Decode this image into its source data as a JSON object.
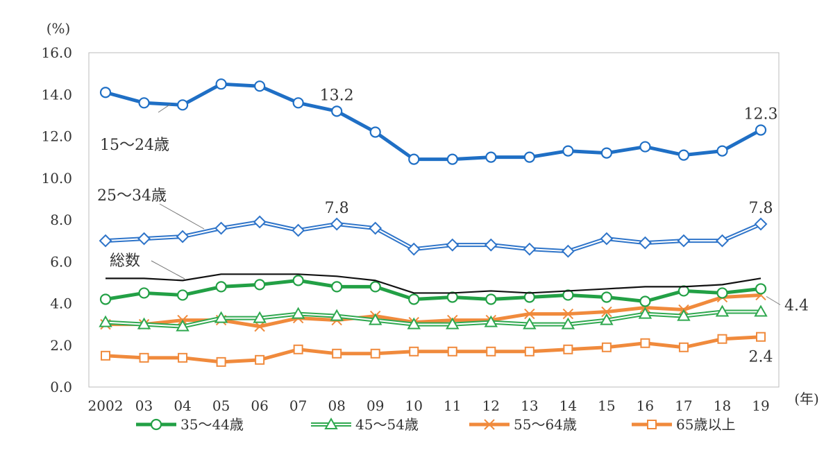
{
  "chart_data": {
    "type": "line",
    "y_unit": "(%)",
    "x_unit": "(年)",
    "categories": [
      "2002",
      "03",
      "04",
      "05",
      "06",
      "07",
      "08",
      "09",
      "10",
      "11",
      "12",
      "13",
      "14",
      "15",
      "16",
      "17",
      "18",
      "19"
    ],
    "ylim": [
      0,
      16
    ],
    "yticks": [
      "0.0",
      "2.0",
      "4.0",
      "6.0",
      "8.0",
      "10.0",
      "12.0",
      "14.0",
      "16.0"
    ],
    "grid": false,
    "legend_position": "bottom",
    "series": [
      {
        "name": "15～24歳",
        "key": "s1524",
        "color": "#1f6fc5",
        "style": "thick-circle",
        "values": [
          14.1,
          13.6,
          13.5,
          14.5,
          14.4,
          13.6,
          13.2,
          12.2,
          10.9,
          10.9,
          11.0,
          11.0,
          11.3,
          11.2,
          11.5,
          11.1,
          11.3,
          12.3
        ]
      },
      {
        "name": "25～34歳",
        "key": "s2534",
        "color": "#2e74c9",
        "style": "double-diamond",
        "values": [
          7.0,
          7.1,
          7.2,
          7.6,
          7.9,
          7.5,
          7.8,
          7.6,
          6.6,
          6.8,
          6.8,
          6.6,
          6.5,
          7.1,
          6.9,
          7.0,
          7.0,
          7.8
        ]
      },
      {
        "name": "総数",
        "key": "total",
        "color": "#111111",
        "style": "thin",
        "values": [
          5.2,
          5.2,
          5.1,
          5.4,
          5.4,
          5.4,
          5.3,
          5.1,
          4.5,
          4.5,
          4.6,
          4.5,
          4.6,
          4.7,
          4.8,
          4.8,
          4.9,
          5.2
        ]
      },
      {
        "name": "35～44歳",
        "key": "s3544",
        "color": "#22a045",
        "style": "thick-circle",
        "values": [
          4.2,
          4.5,
          4.4,
          4.8,
          4.9,
          5.1,
          4.8,
          4.8,
          4.2,
          4.3,
          4.2,
          4.3,
          4.4,
          4.3,
          4.1,
          4.6,
          4.5,
          4.7
        ]
      },
      {
        "name": "45～54歳",
        "key": "s4554",
        "color": "#2fa84f",
        "style": "double-triangle",
        "values": [
          3.1,
          3.0,
          2.9,
          3.3,
          3.3,
          3.5,
          3.4,
          3.2,
          3.0,
          3.0,
          3.1,
          3.0,
          3.0,
          3.2,
          3.5,
          3.4,
          3.6,
          3.6
        ]
      },
      {
        "name": "55～64歳",
        "key": "s5564",
        "color": "#f08a3c",
        "style": "thick-x",
        "values": [
          3.0,
          3.0,
          3.2,
          3.2,
          2.9,
          3.3,
          3.2,
          3.4,
          3.1,
          3.2,
          3.2,
          3.5,
          3.5,
          3.6,
          3.8,
          3.7,
          4.3,
          4.4
        ]
      },
      {
        "name": "65歳以上",
        "key": "s65",
        "color": "#f08a3c",
        "style": "thick-square",
        "values": [
          1.5,
          1.4,
          1.4,
          1.2,
          1.3,
          1.8,
          1.6,
          1.6,
          1.7,
          1.7,
          1.7,
          1.7,
          1.8,
          1.9,
          2.1,
          1.9,
          2.3,
          2.4
        ]
      }
    ],
    "annotations": [
      {
        "text": "13.2",
        "series": "s1524",
        "index": 6,
        "pos": "above"
      },
      {
        "text": "12.3",
        "series": "s1524",
        "index": 17,
        "pos": "above"
      },
      {
        "text": "7.8",
        "series": "s2534",
        "index": 6,
        "pos": "above"
      },
      {
        "text": "7.8",
        "series": "s2534",
        "index": 17,
        "pos": "above"
      },
      {
        "text": "4.4",
        "series": "s5564",
        "index": 17,
        "pos": "right"
      },
      {
        "text": "2.4",
        "series": "s65",
        "index": 17,
        "pos": "below"
      }
    ],
    "series_labels": [
      {
        "text": "15～24歳",
        "series": "s1524"
      },
      {
        "text": "25～34歳",
        "series": "s2534"
      },
      {
        "text": "総数",
        "series": "total"
      }
    ],
    "legend": [
      "35～44歳",
      "45～54歳",
      "55～64歳",
      "65歳以上"
    ]
  }
}
